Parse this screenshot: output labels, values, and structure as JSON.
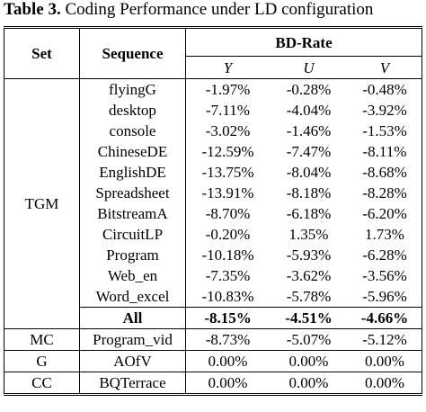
{
  "caption": {
    "label": "Table 3.",
    "text": "Coding Performance under LD configuration"
  },
  "table": {
    "header": {
      "set": "Set",
      "sequence": "Sequence",
      "metric": "BD-Rate",
      "channels": [
        "Y",
        "U",
        "V"
      ]
    },
    "groups": [
      {
        "set": "TGM",
        "rows": [
          [
            "flyingG",
            "-1.97%",
            "-0.28%",
            "-0.48%"
          ],
          [
            "desktop",
            "-7.11%",
            "-4.04%",
            "-3.92%"
          ],
          [
            "console",
            "-3.02%",
            "-1.46%",
            "-1.53%"
          ],
          [
            "ChineseDE",
            "-12.59%",
            "-7.47%",
            "-8.11%"
          ],
          [
            "EnglishDE",
            "-13.75%",
            "-8.04%",
            "-8.68%"
          ],
          [
            "Spreadsheet",
            "-13.91%",
            "-8.18%",
            "-8.28%"
          ],
          [
            "BitstreamA",
            "-8.70%",
            "-6.18%",
            "-6.20%"
          ],
          [
            "CircuitLP",
            "-0.20%",
            "1.35%",
            "1.73%"
          ],
          [
            "Program",
            "-10.18%",
            "-5.93%",
            "-6.28%"
          ],
          [
            "Web_en",
            "-7.35%",
            "-3.62%",
            "-3.56%"
          ],
          [
            "Word_excel",
            "-10.83%",
            "-5.78%",
            "-5.96%"
          ]
        ],
        "total": [
          "All",
          "-8.15%",
          "-4.51%",
          "-4.66%"
        ]
      },
      {
        "set": "MC",
        "rows": [
          [
            "Program_vid",
            "-8.73%",
            "-5.07%",
            "-5.12%"
          ]
        ]
      },
      {
        "set": "G",
        "rows": [
          [
            "AOfV",
            "0.00%",
            "0.00%",
            "0.00%"
          ]
        ]
      },
      {
        "set": "CC",
        "rows": [
          [
            "BQTerrace",
            "0.00%",
            "0.00%",
            "0.00%"
          ]
        ]
      }
    ]
  }
}
